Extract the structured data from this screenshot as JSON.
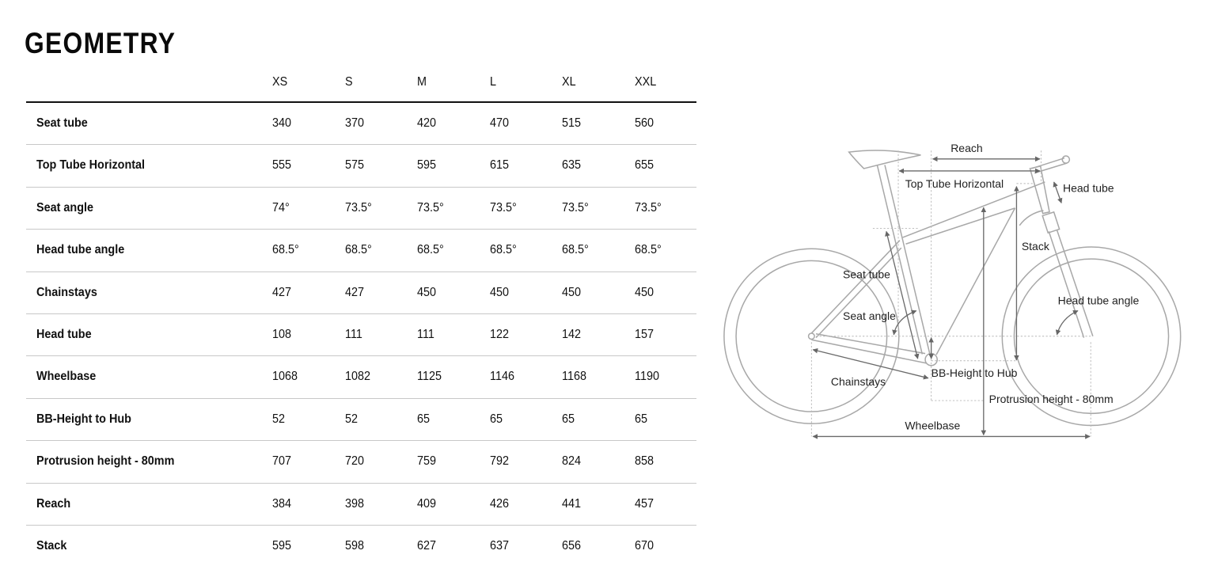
{
  "title": "GEOMETRY",
  "sizes": [
    "XS",
    "S",
    "M",
    "L",
    "XL",
    "XXL"
  ],
  "rows": [
    {
      "label": "Seat tube",
      "values": [
        "340",
        "370",
        "420",
        "470",
        "515",
        "560"
      ]
    },
    {
      "label": "Top Tube Horizontal",
      "values": [
        "555",
        "575",
        "595",
        "615",
        "635",
        "655"
      ]
    },
    {
      "label": "Seat angle",
      "values": [
        "74°",
        "73.5°",
        "73.5°",
        "73.5°",
        "73.5°",
        "73.5°"
      ]
    },
    {
      "label": "Head tube angle",
      "values": [
        "68.5°",
        "68.5°",
        "68.5°",
        "68.5°",
        "68.5°",
        "68.5°"
      ]
    },
    {
      "label": "Chainstays",
      "values": [
        "427",
        "427",
        "450",
        "450",
        "450",
        "450"
      ]
    },
    {
      "label": "Head tube",
      "values": [
        "108",
        "111",
        "111",
        "122",
        "142",
        "157"
      ]
    },
    {
      "label": "Wheelbase",
      "values": [
        "1068",
        "1082",
        "1125",
        "1146",
        "1168",
        "1190"
      ]
    },
    {
      "label": "BB-Height to Hub",
      "values": [
        "52",
        "52",
        "65",
        "65",
        "65",
        "65"
      ]
    },
    {
      "label": "Protrusion height - 80mm",
      "values": [
        "707",
        "720",
        "759",
        "792",
        "824",
        "858"
      ]
    },
    {
      "label": "Reach",
      "values": [
        "384",
        "398",
        "409",
        "426",
        "441",
        "457"
      ]
    },
    {
      "label": "Stack",
      "values": [
        "595",
        "598",
        "627",
        "637",
        "656",
        "670"
      ]
    }
  ],
  "diagram": {
    "labels": {
      "reach": "Reach",
      "top_tube": "Top Tube Horizontal",
      "head_tube": "Head tube",
      "stack": "Stack",
      "seat_tube": "Seat tube",
      "head_tube_angle": "Head tube angle",
      "seat_angle": "Seat angle",
      "bb_height": "BB-Height to Hub",
      "chainstays": "Chainstays",
      "protrusion": "Protrusion height - 80mm",
      "wheelbase": "Wheelbase"
    }
  }
}
